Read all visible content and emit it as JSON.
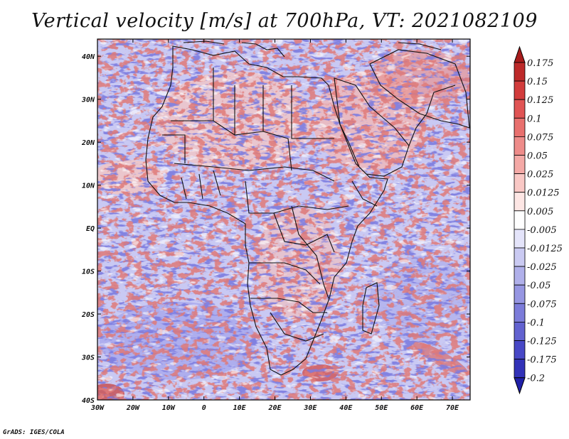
{
  "title": "Vertical velocity [m/s] at 700hPa, VT: 2021082109",
  "credit": "GrADS: IGES/COLA",
  "map": {
    "lon_labels": [
      "30W",
      "20W",
      "10W",
      "0",
      "10E",
      "20E",
      "30E",
      "40E",
      "50E",
      "60E",
      "70E"
    ],
    "lat_labels": [
      "40N",
      "30N",
      "20N",
      "10N",
      "EQ",
      "10S",
      "20S",
      "30S",
      "40S"
    ],
    "lon_range": [
      -30,
      75
    ],
    "lat_range": [
      -40,
      44
    ]
  },
  "colorbar": {
    "labels": [
      "0.175",
      "0.15",
      "0.125",
      "0.1",
      "0.075",
      "0.05",
      "0.025",
      "0.0125",
      "0.005",
      "-0.005",
      "-0.0125",
      "-0.025",
      "-0.05",
      "-0.075",
      "-0.1",
      "-0.125",
      "-0.175",
      "-0.2"
    ],
    "colors": [
      "#a81c1c",
      "#bd2a2a",
      "#d23c3c",
      "#e05454",
      "#e8706e",
      "#ee8c8a",
      "#f4a9a6",
      "#f9c8c5",
      "#fde6e4",
      "#ffffff",
      "#e4e4fa",
      "#cacaf2",
      "#b0b0ea",
      "#9696e2",
      "#7c7cda",
      "#6262d0",
      "#4848c6",
      "#3232b8",
      "#2020a8"
    ]
  }
}
